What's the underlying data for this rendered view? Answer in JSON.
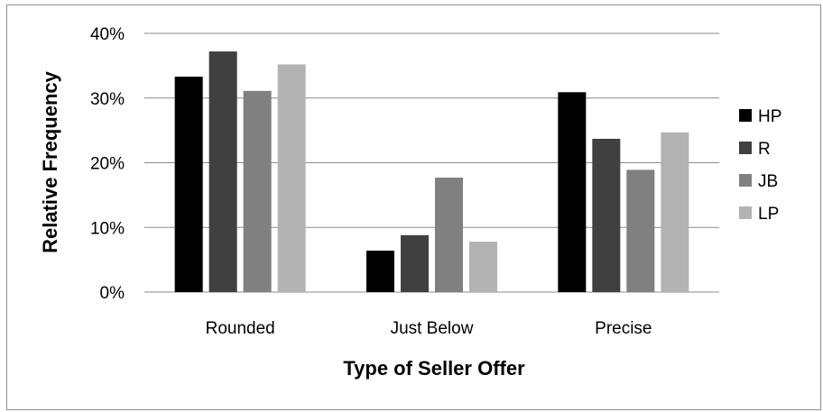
{
  "chart_data": {
    "type": "bar",
    "title": "",
    "xlabel": "Type of Seller Offer",
    "ylabel": "Relative Frequency",
    "categories": [
      "Rounded",
      "Just Below",
      "Precise"
    ],
    "ylim": [
      0,
      40
    ],
    "yticks": [
      {
        "value": 0,
        "label": "0%"
      },
      {
        "value": 10,
        "label": "10%"
      },
      {
        "value": 20,
        "label": "20%"
      },
      {
        "value": 30,
        "label": "30%"
      },
      {
        "value": 40,
        "label": "40%"
      }
    ],
    "grid": true,
    "legend_position": "right",
    "series": [
      {
        "name": "HP",
        "color": "#000000",
        "values": [
          33.3,
          6.4,
          30.9
        ]
      },
      {
        "name": "R",
        "color": "#404040",
        "values": [
          37.2,
          8.8,
          23.7
        ]
      },
      {
        "name": "JB",
        "color": "#808080",
        "values": [
          31.1,
          17.7,
          18.9
        ]
      },
      {
        "name": "LP",
        "color": "#b3b3b3",
        "values": [
          35.2,
          7.8,
          24.7
        ]
      }
    ]
  }
}
